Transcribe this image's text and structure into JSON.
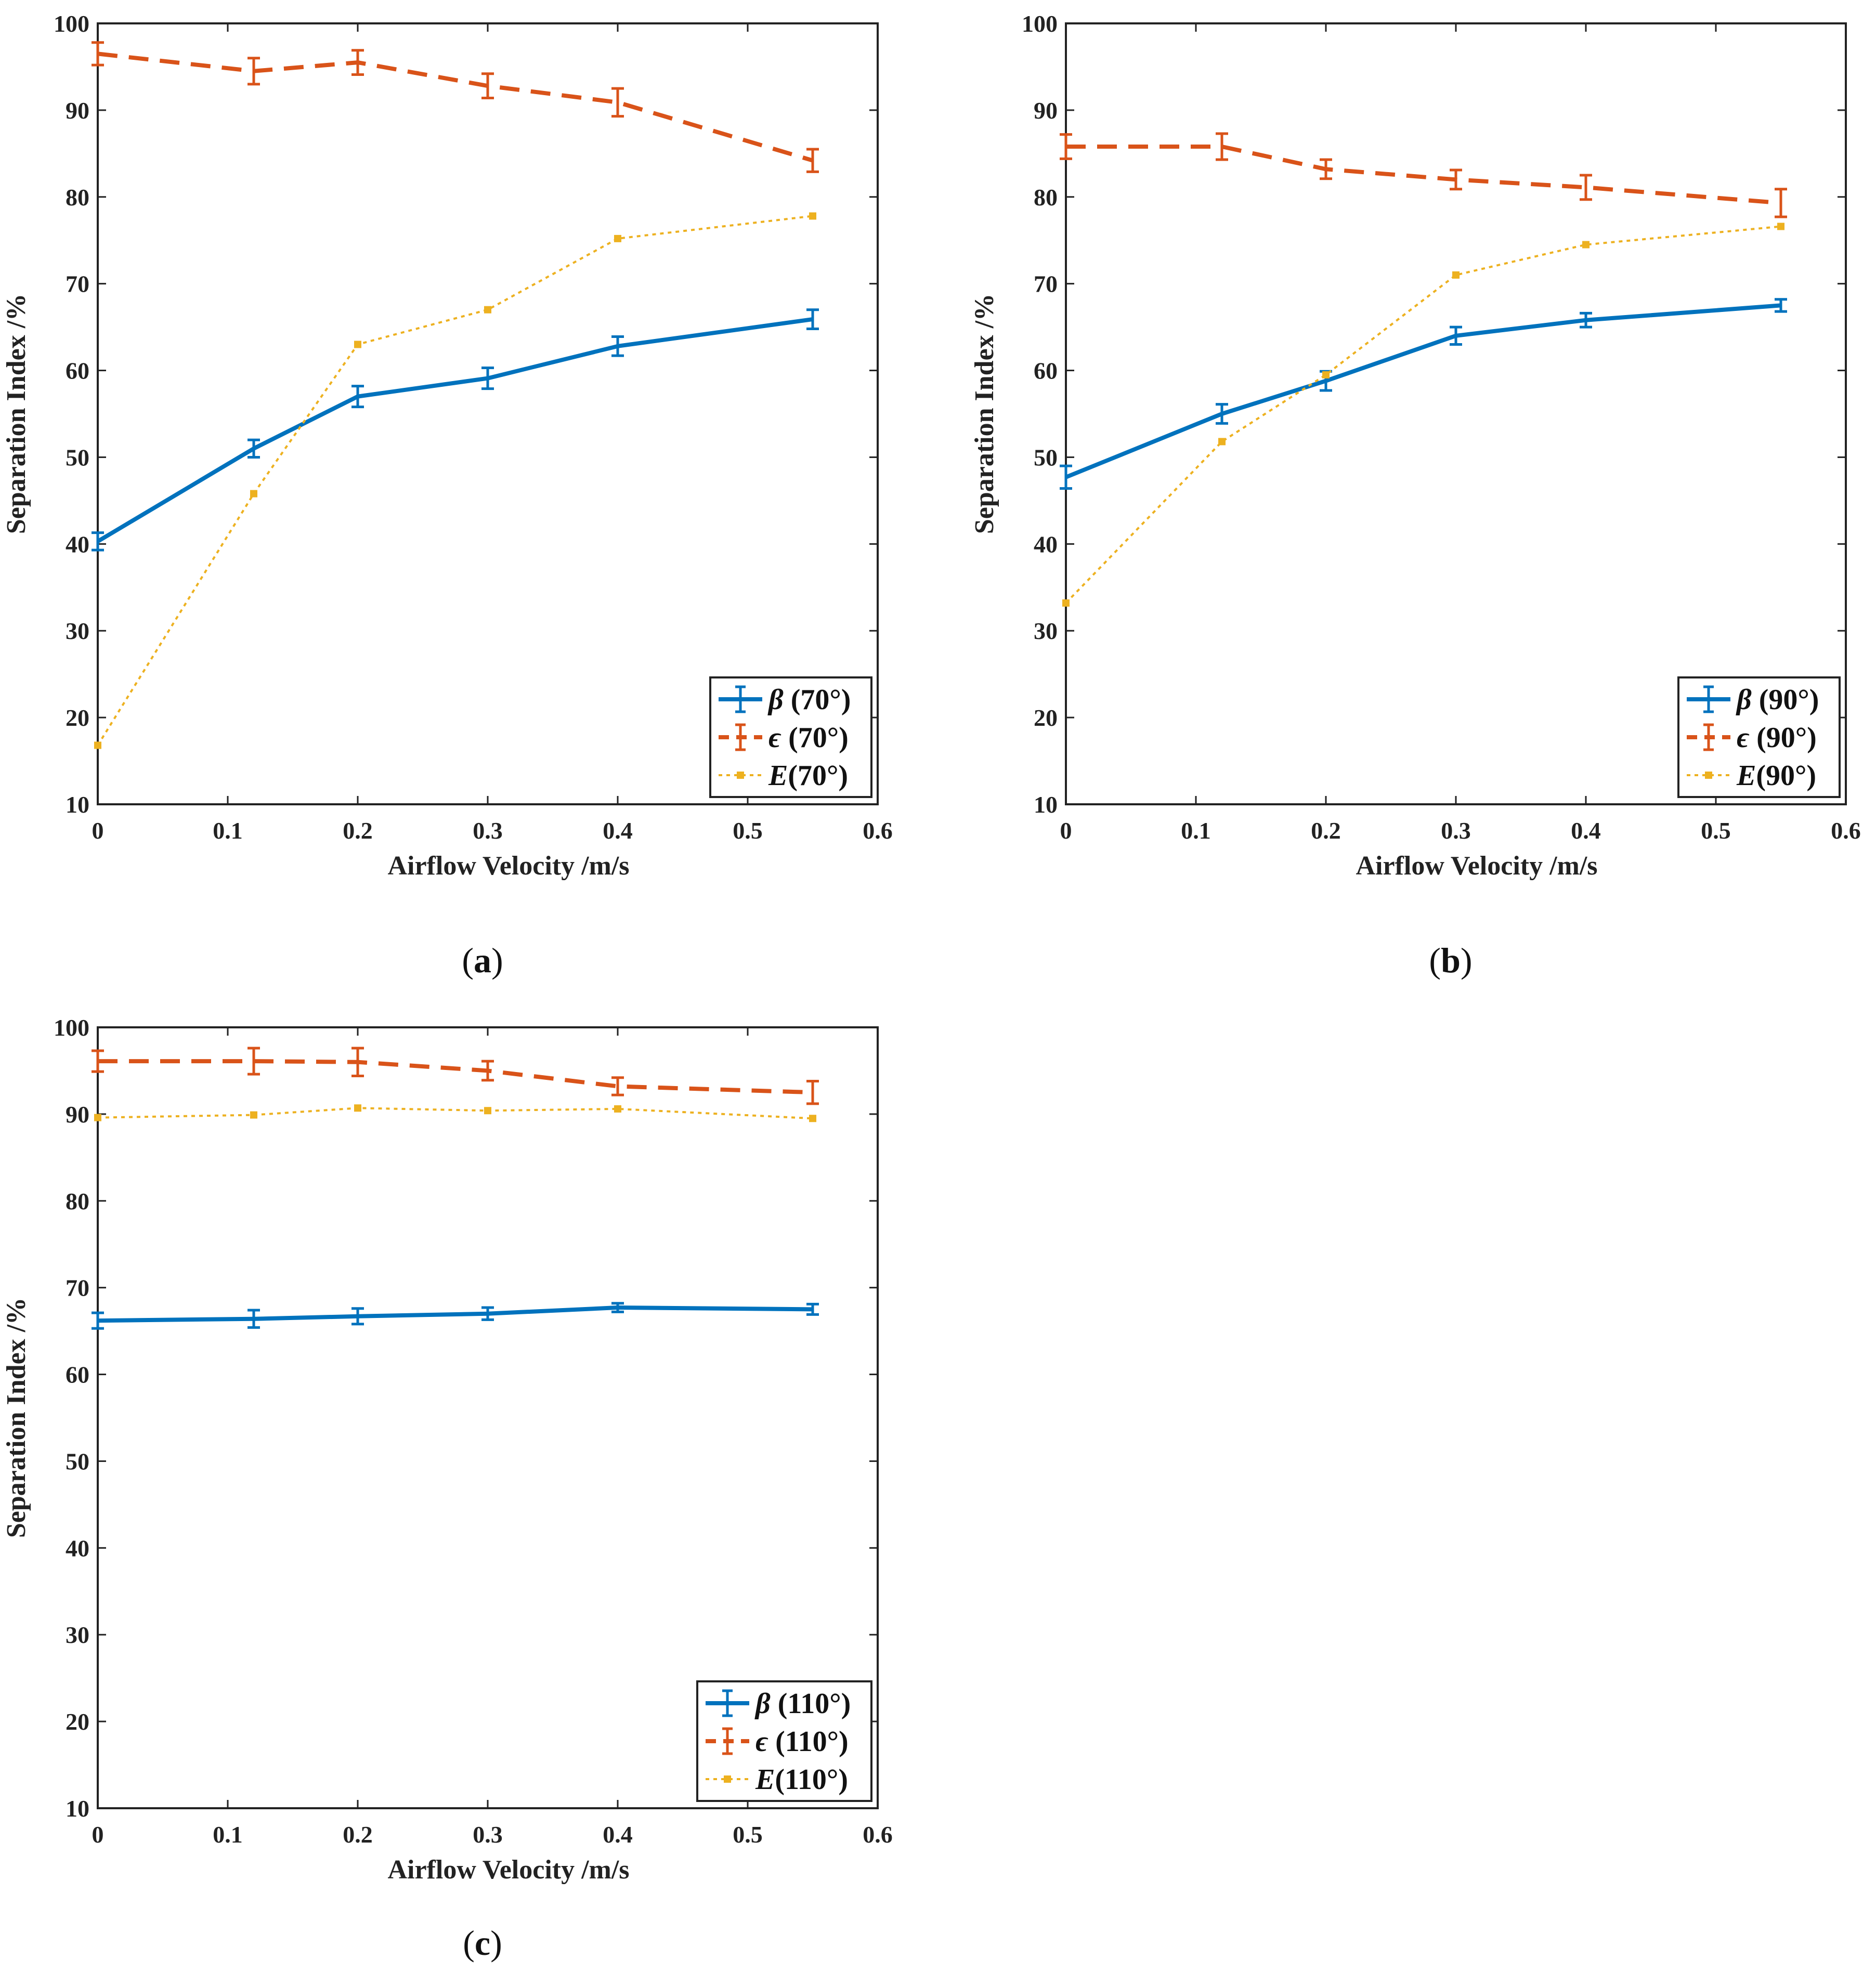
{
  "figure": {
    "panels": [
      {
        "id": "a",
        "caption_letter": "a"
      },
      {
        "id": "b",
        "caption_letter": "b"
      },
      {
        "id": "c",
        "caption_letter": "c"
      }
    ]
  },
  "colors": {
    "beta": "#0072BD",
    "epsilon": "#D95319",
    "E": "#EDB120",
    "axis": "#222222"
  },
  "chart_data": [
    {
      "type": "line",
      "panel": "a",
      "xlabel": "Airflow Velocity /m/s",
      "ylabel": "Separation Index /%",
      "xlim": [
        0,
        0.6
      ],
      "ylim": [
        10,
        100
      ],
      "xticks": [
        "0",
        "0.1",
        "0.2",
        "0.3",
        "0.4",
        "0.5",
        "0.6"
      ],
      "yticks": [
        "10",
        "20",
        "30",
        "40",
        "50",
        "60",
        "70",
        "80",
        "90",
        "100"
      ],
      "legend_position": "bottom-right",
      "x": [
        0,
        0.12,
        0.2,
        0.3,
        0.4,
        0.55
      ],
      "series": [
        {
          "key": "beta",
          "symbol": "β",
          "name": " (70°)",
          "style": "solid",
          "values": [
            40.3,
            51.0,
            57.0,
            59.1,
            62.8,
            65.9
          ],
          "errors": [
            1.0,
            1.0,
            1.2,
            1.2,
            1.1,
            1.1
          ]
        },
        {
          "key": "epsilon",
          "symbol": "ϵ",
          "name": " (70°)",
          "style": "dashed",
          "values": [
            96.5,
            94.5,
            95.5,
            92.8,
            90.9,
            84.2
          ],
          "errors": [
            1.3,
            1.5,
            1.4,
            1.4,
            1.6,
            1.3
          ]
        },
        {
          "key": "E",
          "symbol": "E",
          "name": "(70°)",
          "style": "dotted",
          "values": [
            16.8,
            45.8,
            63.0,
            67.0,
            75.2,
            77.8
          ],
          "errors": null
        }
      ]
    },
    {
      "type": "line",
      "panel": "b",
      "xlabel": "Airflow Velocity /m/s",
      "ylabel": "Separation Index /%",
      "xlim": [
        0,
        0.6
      ],
      "ylim": [
        10,
        100
      ],
      "xticks": [
        "0",
        "0.1",
        "0.2",
        "0.3",
        "0.4",
        "0.5",
        "0.6"
      ],
      "yticks": [
        "10",
        "20",
        "30",
        "40",
        "50",
        "60",
        "70",
        "80",
        "90",
        "100"
      ],
      "legend_position": "bottom-right",
      "x": [
        0,
        0.12,
        0.2,
        0.3,
        0.4,
        0.55
      ],
      "series": [
        {
          "key": "beta",
          "symbol": "β",
          "name": " (90°)",
          "style": "solid",
          "values": [
            47.7,
            55.0,
            58.8,
            64.0,
            65.8,
            67.5
          ],
          "errors": [
            1.3,
            1.1,
            1.1,
            1.0,
            0.8,
            0.7
          ]
        },
        {
          "key": "epsilon",
          "symbol": "ϵ",
          "name": " (90°)",
          "style": "dashed",
          "values": [
            85.8,
            85.8,
            83.2,
            82.0,
            81.1,
            79.3
          ],
          "errors": [
            1.4,
            1.5,
            1.1,
            1.1,
            1.4,
            1.6
          ]
        },
        {
          "key": "E",
          "symbol": "E",
          "name": "(90°)",
          "style": "dotted",
          "values": [
            33.2,
            51.8,
            59.5,
            71.0,
            74.5,
            76.6
          ],
          "errors": null
        }
      ]
    },
    {
      "type": "line",
      "panel": "c",
      "xlabel": "Airflow Velocity /m/s",
      "ylabel": "Separation Index /%",
      "xlim": [
        0,
        0.6
      ],
      "ylim": [
        10,
        100
      ],
      "xticks": [
        "0",
        "0.1",
        "0.2",
        "0.3",
        "0.4",
        "0.5",
        "0.6"
      ],
      "yticks": [
        "10",
        "20",
        "30",
        "40",
        "50",
        "60",
        "70",
        "80",
        "90",
        "100"
      ],
      "legend_position": "bottom-right",
      "x": [
        0,
        0.12,
        0.2,
        0.3,
        0.4,
        0.55
      ],
      "series": [
        {
          "key": "beta",
          "symbol": "β",
          "name": " (110°)",
          "style": "solid",
          "values": [
            66.2,
            66.4,
            66.7,
            67.0,
            67.7,
            67.5
          ],
          "errors": [
            0.9,
            1.0,
            0.9,
            0.7,
            0.5,
            0.6
          ]
        },
        {
          "key": "epsilon",
          "symbol": "ϵ",
          "name": " (110°)",
          "style": "dashed",
          "values": [
            96.1,
            96.1,
            96.0,
            95.0,
            93.2,
            92.5
          ],
          "errors": [
            1.2,
            1.5,
            1.6,
            1.1,
            1.0,
            1.3
          ]
        },
        {
          "key": "E",
          "symbol": "E",
          "name": "(110°)",
          "style": "dotted",
          "values": [
            89.6,
            89.9,
            90.7,
            90.4,
            90.6,
            89.5
          ],
          "errors": null
        }
      ]
    }
  ]
}
